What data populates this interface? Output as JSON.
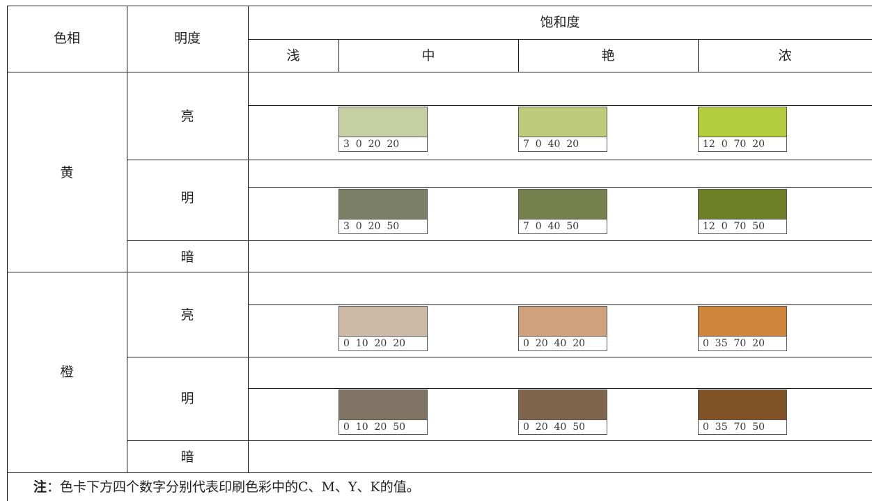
{
  "header": {
    "hue": "色相",
    "brightness": "明度",
    "saturation": "饱和度",
    "saturation_levels": [
      "浅",
      "中",
      "艳",
      "浓"
    ]
  },
  "groups": [
    {
      "hue": "黄",
      "rows": [
        {
          "label": "亮",
          "swatches": [
            {
              "cmyk": "3  0  20  20",
              "color": "#c6ceA4"
            },
            {
              "cmyk": "7  0  40  20",
              "color": "#bdcb7a"
            },
            {
              "cmyk": "12  0  70  20",
              "color": "#b3cd3e"
            }
          ]
        },
        {
          "label": "明",
          "swatches": [
            {
              "cmyk": "3  0  20  50",
              "color": "#7b7f66"
            },
            {
              "cmyk": "7  0  40  50",
              "color": "#75804c"
            },
            {
              "cmyk": "12  0  70  50",
              "color": "#6f7f26"
            }
          ]
        },
        {
          "label": "暗"
        }
      ]
    },
    {
      "hue": "橙",
      "rows": [
        {
          "label": "亮",
          "swatches": [
            {
              "cmyk": "0  10  20  20",
              "color": "#cdb9a5"
            },
            {
              "cmyk": "0  20  40  20",
              "color": "#cfa27b"
            },
            {
              "cmyk": "0  35  70  20",
              "color": "#cf853c"
            }
          ]
        },
        {
          "label": "明",
          "swatches": [
            {
              "cmyk": "0  10  20  50",
              "color": "#807465"
            },
            {
              "cmyk": "0  20  40  50",
              "color": "#80654d"
            },
            {
              "cmyk": "0  35  70  50",
              "color": "#805226"
            }
          ]
        },
        {
          "label": "暗"
        }
      ]
    }
  ],
  "note": {
    "prefix": "注",
    "text": "：色卡下方四个数字分别代表印刷色彩中的C、M、Y、K的值。"
  }
}
